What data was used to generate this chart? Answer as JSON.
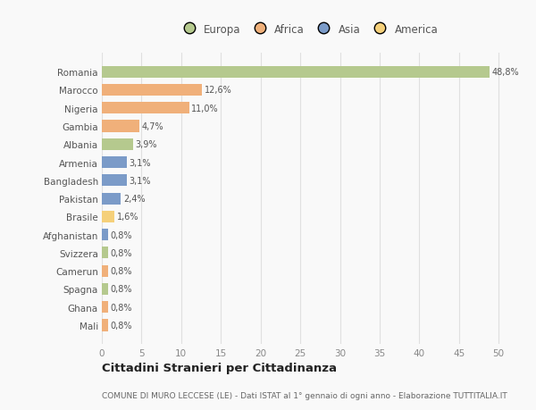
{
  "countries": [
    "Romania",
    "Marocco",
    "Nigeria",
    "Gambia",
    "Albania",
    "Armenia",
    "Bangladesh",
    "Pakistan",
    "Brasile",
    "Afghanistan",
    "Svizzera",
    "Camerun",
    "Spagna",
    "Ghana",
    "Mali"
  ],
  "values": [
    48.8,
    12.6,
    11.0,
    4.7,
    3.9,
    3.1,
    3.1,
    2.4,
    1.6,
    0.8,
    0.8,
    0.8,
    0.8,
    0.8,
    0.8
  ],
  "labels": [
    "48,8%",
    "12,6%",
    "11,0%",
    "4,7%",
    "3,9%",
    "3,1%",
    "3,1%",
    "2,4%",
    "1,6%",
    "0,8%",
    "0,8%",
    "0,8%",
    "0,8%",
    "0,8%",
    "0,8%"
  ],
  "colors": [
    "#b5c98e",
    "#f0b07a",
    "#f0b07a",
    "#f0b07a",
    "#b5c98e",
    "#7b9bc8",
    "#7b9bc8",
    "#7b9bc8",
    "#f5d07a",
    "#7b9bc8",
    "#b5c98e",
    "#f0b07a",
    "#b5c98e",
    "#f0b07a",
    "#f0b07a"
  ],
  "legend_labels": [
    "Europa",
    "Africa",
    "Asia",
    "America"
  ],
  "legend_colors": [
    "#b5c98e",
    "#f0b07a",
    "#7b9bc8",
    "#f5d07a"
  ],
  "xlim": [
    0,
    52
  ],
  "xticks": [
    0,
    5,
    10,
    15,
    20,
    25,
    30,
    35,
    40,
    45,
    50
  ],
  "title": "Cittadini Stranieri per Cittadinanza",
  "subtitle": "COMUNE DI MURO LECCESE (LE) - Dati ISTAT al 1° gennaio di ogni anno - Elaborazione TUTTITALIA.IT",
  "background_color": "#f9f9f9",
  "grid_color": "#e0e0e0",
  "bar_height": 0.65
}
